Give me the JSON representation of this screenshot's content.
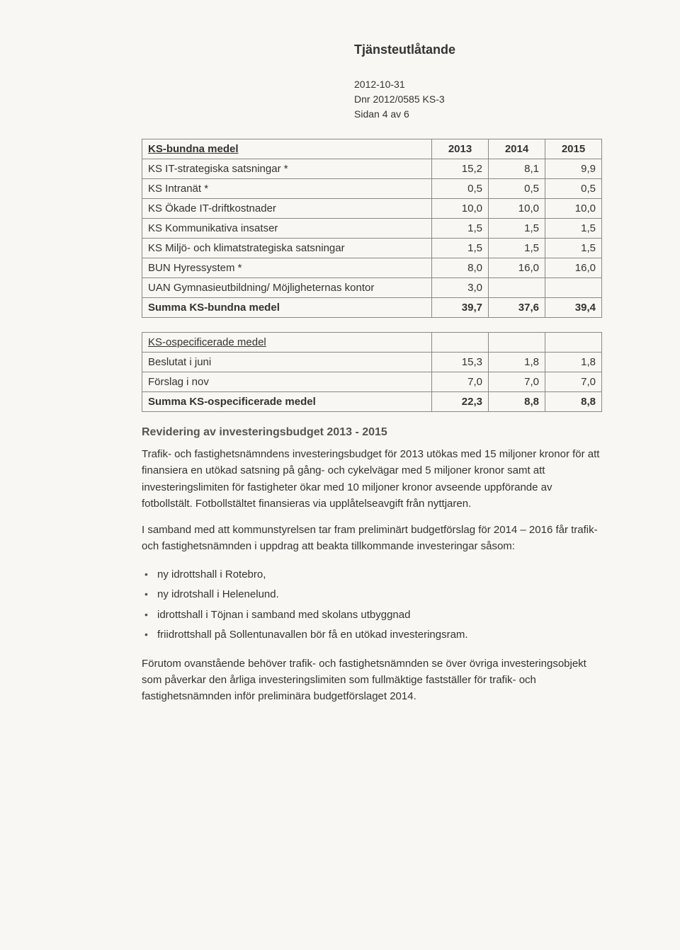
{
  "header": {
    "title": "Tjänsteutlåtande",
    "meta_lines": [
      "2012-10-31",
      "Dnr 2012/0585 KS-3",
      "Sidan 4 av 6"
    ]
  },
  "table1": {
    "headers": [
      "KS-bundna medel",
      "2013",
      "2014",
      "2015"
    ],
    "rows": [
      {
        "label": "KS IT-strategiska satsningar *",
        "v": [
          "15,2",
          "8,1",
          "9,9"
        ]
      },
      {
        "label": "KS Intranät *",
        "v": [
          "0,5",
          "0,5",
          "0,5"
        ]
      },
      {
        "label": "KS Ökade IT-driftkostnader",
        "v": [
          "10,0",
          "10,0",
          "10,0"
        ]
      },
      {
        "label": "KS Kommunikativa insatser",
        "v": [
          "1,5",
          "1,5",
          "1,5"
        ]
      },
      {
        "label": "KS Miljö- och klimatstrategiska satsningar",
        "v": [
          "1,5",
          "1,5",
          "1,5"
        ]
      },
      {
        "label": "BUN Hyressystem *",
        "v": [
          "8,0",
          "16,0",
          "16,0"
        ]
      },
      {
        "label": "UAN Gymnasieutbildning/ Möjligheternas kontor",
        "v": [
          "3,0",
          "",
          ""
        ]
      }
    ],
    "sum": {
      "label": "Summa KS-bundna medel",
      "v": [
        "39,7",
        "37,6",
        "39,4"
      ]
    }
  },
  "table2": {
    "header_row": {
      "label": "KS-ospecificerade medel",
      "v": [
        "",
        "",
        ""
      ]
    },
    "rows": [
      {
        "label": "Beslutat i juni",
        "v": [
          "15,3",
          "1,8",
          "1,8"
        ]
      },
      {
        "label": "Förslag i nov",
        "v": [
          "7,0",
          "7,0",
          "7,0"
        ]
      }
    ],
    "sum": {
      "label": "Summa KS-ospecificerade medel",
      "v": [
        "22,3",
        "8,8",
        "8,8"
      ]
    }
  },
  "section": {
    "heading": "Revidering av investeringsbudget 2013 - 2015",
    "p1": "Trafik- och fastighetsnämndens investeringsbudget för 2013 utökas med 15 miljoner kronor för att finansiera en utökad satsning på gång- och cykelvägar med 5 miljoner kronor samt att investeringslimiten för fastigheter ökar med 10 miljoner kronor avseende uppförande av fotbollstält. Fotbollstältet finansieras via upplåtelseavgift från nyttjaren.",
    "p2": "I samband med att kommunstyrelsen tar fram preliminärt budgetförslag för 2014 – 2016 får trafik- och fastighetsnämnden i uppdrag att beakta tillkommande investeringar såsom:",
    "bullets": [
      "ny idrottshall i Rotebro,",
      "ny idrotshall i Helenelund.",
      "idrottshall i Töjnan i samband med skolans utbyggnad",
      "friidrottshall på Sollentunavallen bör få en utökad investeringsram."
    ],
    "p3": "Förutom ovanstående behöver trafik- och fastighetsnämnden se över övriga investeringsobjekt som påverkar den årliga investeringslimiten som fullmäktige fastställer för trafik- och fastighetsnämnden inför preliminära budgetförslaget 2014."
  }
}
